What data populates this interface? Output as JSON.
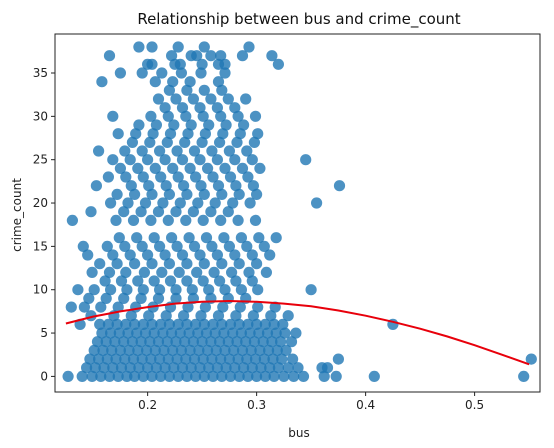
{
  "chart_data": {
    "type": "scatter",
    "title": "Relationship between bus and crime_count",
    "xlabel": "bus",
    "ylabel": "crime_count",
    "xlim": [
      0.115,
      0.56
    ],
    "ylim": [
      -1.8,
      39.5
    ],
    "xticks": [
      0.2,
      0.3,
      0.4,
      0.5
    ],
    "xtick_labels": [
      "0.2",
      "0.3",
      "0.4",
      "0.5"
    ],
    "yticks": [
      0,
      5,
      10,
      15,
      20,
      25,
      30,
      35
    ],
    "ytick_labels": [
      "0",
      "5",
      "10",
      "15",
      "20",
      "25",
      "30",
      "35"
    ],
    "grid": false,
    "series": [
      {
        "kind": "scatter",
        "color": "#1f77b4",
        "x": [
          0.127,
          0.14,
          0.149,
          0.157,
          0.165,
          0.173,
          0.181,
          0.188,
          0.196,
          0.204,
          0.212,
          0.22,
          0.228,
          0.236,
          0.244,
          0.252,
          0.26,
          0.268,
          0.276,
          0.284,
          0.292,
          0.3,
          0.308,
          0.316,
          0.325,
          0.334,
          0.343,
          0.362,
          0.373,
          0.408,
          0.545,
          0.144,
          0.152,
          0.16,
          0.168,
          0.176,
          0.184,
          0.192,
          0.2,
          0.208,
          0.216,
          0.224,
          0.232,
          0.24,
          0.248,
          0.256,
          0.264,
          0.272,
          0.28,
          0.288,
          0.296,
          0.304,
          0.312,
          0.32,
          0.329,
          0.338,
          0.36,
          0.147,
          0.155,
          0.163,
          0.171,
          0.179,
          0.187,
          0.195,
          0.203,
          0.211,
          0.219,
          0.227,
          0.235,
          0.243,
          0.251,
          0.259,
          0.267,
          0.275,
          0.283,
          0.291,
          0.299,
          0.307,
          0.315,
          0.323,
          0.333,
          0.375,
          0.151,
          0.159,
          0.167,
          0.175,
          0.183,
          0.191,
          0.199,
          0.207,
          0.215,
          0.223,
          0.231,
          0.239,
          0.247,
          0.255,
          0.263,
          0.271,
          0.279,
          0.287,
          0.295,
          0.303,
          0.311,
          0.319,
          0.327,
          0.552,
          0.154,
          0.162,
          0.17,
          0.178,
          0.186,
          0.194,
          0.202,
          0.21,
          0.218,
          0.226,
          0.234,
          0.242,
          0.25,
          0.258,
          0.266,
          0.274,
          0.282,
          0.29,
          0.298,
          0.306,
          0.314,
          0.322,
          0.332,
          0.365,
          0.158,
          0.166,
          0.174,
          0.182,
          0.19,
          0.198,
          0.206,
          0.214,
          0.222,
          0.23,
          0.238,
          0.246,
          0.254,
          0.262,
          0.27,
          0.278,
          0.286,
          0.294,
          0.302,
          0.31,
          0.318,
          0.326,
          0.336,
          0.138,
          0.156,
          0.164,
          0.172,
          0.18,
          0.188,
          0.196,
          0.204,
          0.212,
          0.22,
          0.228,
          0.236,
          0.244,
          0.252,
          0.26,
          0.268,
          0.276,
          0.284,
          0.292,
          0.3,
          0.308,
          0.316,
          0.324,
          0.425,
          0.148,
          0.169,
          0.185,
          0.201,
          0.217,
          0.233,
          0.249,
          0.265,
          0.281,
          0.297,
          0.313,
          0.329,
          0.13,
          0.142,
          0.157,
          0.173,
          0.189,
          0.205,
          0.221,
          0.237,
          0.253,
          0.269,
          0.285,
          0.301,
          0.317,
          0.146,
          0.162,
          0.178,
          0.194,
          0.21,
          0.226,
          0.242,
          0.258,
          0.274,
          0.29,
          0.136,
          0.151,
          0.166,
          0.181,
          0.196,
          0.211,
          0.226,
          0.241,
          0.256,
          0.271,
          0.286,
          0.301,
          0.35,
          0.161,
          0.176,
          0.191,
          0.206,
          0.221,
          0.236,
          0.251,
          0.266,
          0.281,
          0.296,
          0.149,
          0.165,
          0.18,
          0.197,
          0.213,
          0.229,
          0.245,
          0.261,
          0.277,
          0.293,
          0.309,
          0.156,
          0.172,
          0.188,
          0.204,
          0.22,
          0.236,
          0.252,
          0.268,
          0.284,
          0.3,
          0.145,
          0.168,
          0.184,
          0.2,
          0.216,
          0.232,
          0.248,
          0.264,
          0.28,
          0.296,
          0.312,
          0.141,
          0.163,
          0.179,
          0.195,
          0.211,
          0.227,
          0.243,
          0.259,
          0.275,
          0.291,
          0.307,
          0.174,
          0.19,
          0.206,
          0.222,
          0.238,
          0.254,
          0.27,
          0.286,
          0.302,
          0.318,
          0.131,
          0.171,
          0.187,
          0.203,
          0.219,
          0.235,
          0.251,
          0.267,
          0.283,
          0.299,
          0.355,
          0.148,
          0.178,
          0.194,
          0.21,
          0.226,
          0.242,
          0.258,
          0.274,
          0.166,
          0.182,
          0.198,
          0.214,
          0.23,
          0.246,
          0.262,
          0.278,
          0.294,
          0.172,
          0.188,
          0.204,
          0.22,
          0.236,
          0.252,
          0.268,
          0.284,
          0.3,
          0.376,
          0.153,
          0.185,
          0.201,
          0.217,
          0.233,
          0.249,
          0.265,
          0.281,
          0.297,
          0.164,
          0.18,
          0.196,
          0.212,
          0.228,
          0.244,
          0.26,
          0.276,
          0.292,
          0.345,
          0.175,
          0.191,
          0.207,
          0.223,
          0.239,
          0.255,
          0.271,
          0.287,
          0.303,
          0.168,
          0.184,
          0.2,
          0.216,
          0.232,
          0.248,
          0.264,
          0.28,
          0.296,
          0.179,
          0.195,
          0.211,
          0.227,
          0.243,
          0.259,
          0.275,
          0.291,
          0.186,
          0.202,
          0.218,
          0.234,
          0.25,
          0.266,
          0.282,
          0.298,
          0.173,
          0.189,
          0.205,
          0.221,
          0.237,
          0.253,
          0.269,
          0.285,
          0.301,
          0.192,
          0.208,
          0.224,
          0.24,
          0.256,
          0.272,
          0.288,
          0.168,
          0.203,
          0.219,
          0.235,
          0.251,
          0.267,
          0.283,
          0.299,
          0.155,
          0.216,
          0.232,
          0.248,
          0.264,
          0.28,
          0.21,
          0.226,
          0.242,
          0.258,
          0.274,
          0.29,
          0.22,
          0.236,
          0.252,
          0.268,
          0.207,
          0.223,
          0.239,
          0.265,
          0.314,
          0.158,
          0.195,
          0.213,
          0.231,
          0.249,
          0.271,
          0.204,
          0.23,
          0.265,
          0.165,
          0.175,
          0.245,
          0.258,
          0.222,
          0.24,
          0.267,
          0.287,
          0.192,
          0.204,
          0.228,
          0.252,
          0.293,
          0.2,
          0.225,
          0.25,
          0.271,
          0.32
        ],
        "y": [
          0,
          0,
          0,
          0,
          0,
          0,
          0,
          0,
          0,
          0,
          0,
          0,
          0,
          0,
          0,
          0,
          0,
          0,
          0,
          0,
          0,
          0,
          0,
          0,
          0,
          0,
          0,
          0,
          0,
          0,
          0,
          1,
          1,
          1,
          1,
          1,
          1,
          1,
          1,
          1,
          1,
          1,
          1,
          1,
          1,
          1,
          1,
          1,
          1,
          1,
          1,
          1,
          1,
          1,
          1,
          1,
          1,
          2,
          2,
          2,
          2,
          2,
          2,
          2,
          2,
          2,
          2,
          2,
          2,
          2,
          2,
          2,
          2,
          2,
          2,
          2,
          2,
          2,
          2,
          2,
          2,
          2,
          3,
          3,
          3,
          3,
          3,
          3,
          3,
          3,
          3,
          3,
          3,
          3,
          3,
          3,
          3,
          3,
          3,
          3,
          3,
          3,
          3,
          3,
          3,
          2,
          4,
          4,
          4,
          4,
          4,
          4,
          4,
          4,
          4,
          4,
          4,
          4,
          4,
          4,
          4,
          4,
          4,
          4,
          4,
          4,
          4,
          4,
          4,
          1,
          5,
          5,
          5,
          5,
          5,
          5,
          5,
          5,
          5,
          5,
          5,
          5,
          5,
          5,
          5,
          5,
          5,
          5,
          5,
          5,
          5,
          5,
          5,
          6,
          6,
          6,
          6,
          6,
          6,
          6,
          6,
          6,
          6,
          6,
          6,
          6,
          6,
          6,
          6,
          6,
          6,
          6,
          6,
          6,
          6,
          6,
          6,
          7,
          7,
          7,
          7,
          7,
          7,
          7,
          7,
          7,
          7,
          7,
          7,
          8,
          8,
          8,
          8,
          8,
          8,
          8,
          8,
          8,
          8,
          8,
          8,
          8,
          9,
          9,
          9,
          9,
          9,
          9,
          9,
          9,
          9,
          9,
          10,
          10,
          10,
          10,
          10,
          10,
          10,
          10,
          10,
          10,
          10,
          10,
          10,
          11,
          11,
          11,
          11,
          11,
          11,
          11,
          11,
          11,
          11,
          12,
          12,
          12,
          12,
          12,
          12,
          12,
          12,
          12,
          12,
          12,
          13,
          13,
          13,
          13,
          13,
          13,
          13,
          13,
          13,
          13,
          14,
          14,
          14,
          14,
          14,
          14,
          14,
          14,
          14,
          14,
          14,
          15,
          15,
          15,
          15,
          15,
          15,
          15,
          15,
          15,
          15,
          15,
          16,
          16,
          16,
          16,
          16,
          16,
          16,
          16,
          16,
          16,
          18,
          18,
          18,
          18,
          18,
          18,
          18,
          18,
          18,
          18,
          20,
          19,
          19,
          19,
          19,
          19,
          19,
          19,
          19,
          20,
          20,
          20,
          20,
          20,
          20,
          20,
          20,
          20,
          21,
          21,
          21,
          21,
          21,
          21,
          21,
          21,
          21,
          22,
          22,
          22,
          22,
          22,
          22,
          22,
          22,
          22,
          22,
          23,
          23,
          23,
          23,
          23,
          23,
          23,
          23,
          23,
          25,
          24,
          24,
          24,
          24,
          24,
          24,
          24,
          24,
          24,
          25,
          25,
          25,
          25,
          25,
          25,
          25,
          25,
          25,
          26,
          26,
          26,
          26,
          26,
          26,
          26,
          26,
          27,
          27,
          27,
          27,
          27,
          27,
          27,
          27,
          28,
          28,
          28,
          28,
          28,
          28,
          28,
          28,
          28,
          29,
          29,
          29,
          29,
          29,
          29,
          29,
          30,
          30,
          30,
          30,
          30,
          30,
          30,
          30,
          26,
          31,
          31,
          31,
          31,
          31,
          32,
          32,
          32,
          32,
          32,
          32,
          33,
          33,
          33,
          33,
          34,
          34,
          34,
          34,
          37,
          34,
          35,
          35,
          35,
          35,
          35,
          36,
          36,
          36,
          37,
          35,
          37,
          37,
          37,
          37,
          37,
          37,
          38,
          38,
          38,
          38,
          38,
          36,
          36,
          36,
          36,
          36
        ]
      },
      {
        "kind": "line",
        "color": "#e8000b",
        "x": [
          0.125,
          0.15,
          0.175,
          0.2,
          0.225,
          0.25,
          0.275,
          0.3,
          0.325,
          0.35,
          0.375,
          0.4,
          0.425,
          0.45,
          0.475,
          0.5,
          0.525,
          0.55
        ],
        "y": [
          6.1,
          6.9,
          7.5,
          8.0,
          8.4,
          8.6,
          8.7,
          8.6,
          8.4,
          8.1,
          7.6,
          7.0,
          6.3,
          5.5,
          4.6,
          3.6,
          2.5,
          1.4
        ]
      }
    ]
  }
}
